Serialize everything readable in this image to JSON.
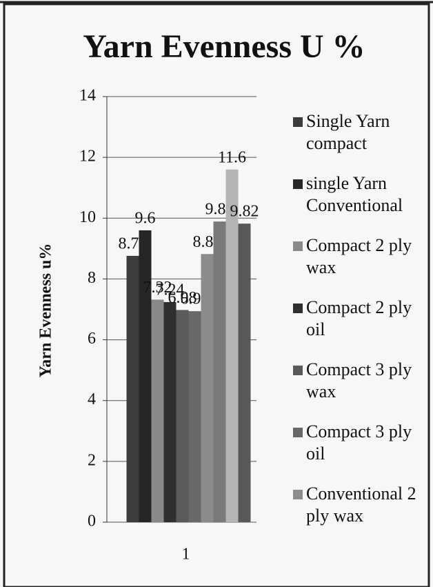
{
  "chart_data": {
    "type": "bar",
    "title": "Yarn Evenness U %",
    "y_label": "Yarn Evenness u%",
    "categories": [
      "1"
    ],
    "ylim": [
      0,
      14
    ],
    "yticks": [
      0,
      2,
      4,
      6,
      8,
      10,
      12,
      14
    ],
    "grid": true,
    "series": [
      {
        "name": "Single Yarn compact",
        "color": "#3c3c3c",
        "values": [
          8.76
        ]
      },
      {
        "name": "single Yarn Conventional",
        "color": "#262626",
        "values": [
          9.6
        ]
      },
      {
        "name": "Compact 2 ply wax",
        "color": "#8a8a8a",
        "values": [
          7.32
        ]
      },
      {
        "name": "Compact 2 ply oil",
        "color": "#303030",
        "values": [
          7.24
        ]
      },
      {
        "name": "Compact 3 ply wax",
        "color": "#5a5a5a",
        "values": [
          6.98
        ]
      },
      {
        "name": "Compact 3 ply oil",
        "color": "#686868",
        "values": [
          6.94
        ]
      },
      {
        "name": "Conventional 2 ply wax",
        "color": "#8c8c8c",
        "values": [
          8.82
        ]
      },
      {
        "name": null,
        "color": "#7a7a7a",
        "values": [
          9.89
        ]
      },
      {
        "name": null,
        "color": "#b4b4b4",
        "values": [
          11.6
        ]
      },
      {
        "name": null,
        "color": "#585858",
        "values": [
          9.82
        ]
      }
    ]
  }
}
